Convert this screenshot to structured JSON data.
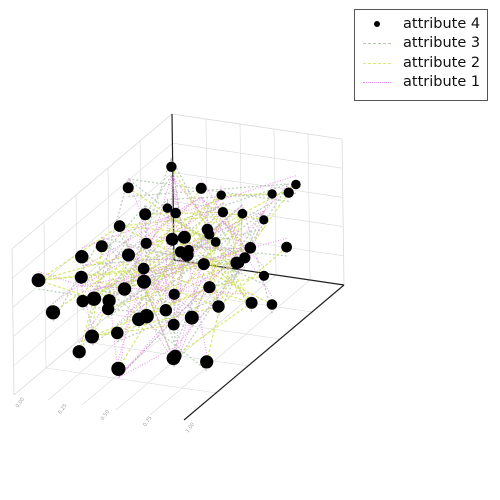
{
  "chart_data": {
    "type": "scatter",
    "projection": "3d",
    "title": "",
    "grid": true,
    "legend": {
      "placement": "top-right"
    },
    "x_ticks": [
      "0.00",
      "0.25",
      "0.50",
      "0.75",
      "1.00"
    ],
    "series": [
      {
        "name": "attribute 4",
        "marker": "filled-circle",
        "color": "#000000",
        "points": [
          [
            0.05,
            0.38,
            0.3
          ],
          [
            0.1,
            0.45,
            0.62
          ],
          [
            0.12,
            0.3,
            0.55
          ],
          [
            0.14,
            0.52,
            0.7
          ],
          [
            0.18,
            0.4,
            0.25
          ],
          [
            0.2,
            0.62,
            0.5
          ],
          [
            0.22,
            0.2,
            0.8
          ],
          [
            0.25,
            0.55,
            0.4
          ],
          [
            0.28,
            0.35,
            0.15
          ],
          [
            0.3,
            0.7,
            0.65
          ],
          [
            0.33,
            0.48,
            0.85
          ],
          [
            0.35,
            0.12,
            0.35
          ],
          [
            0.38,
            0.6,
            0.2
          ],
          [
            0.4,
            0.3,
            0.75
          ],
          [
            0.42,
            0.78,
            0.45
          ],
          [
            0.45,
            0.22,
            0.6
          ],
          [
            0.47,
            0.5,
            0.1
          ],
          [
            0.5,
            0.65,
            0.9
          ],
          [
            0.52,
            0.4,
            0.3
          ],
          [
            0.55,
            0.85,
            0.55
          ],
          [
            0.57,
            0.18,
            0.45
          ],
          [
            0.6,
            0.58,
            0.7
          ],
          [
            0.62,
            0.35,
            0.05
          ],
          [
            0.65,
            0.72,
            0.35
          ],
          [
            0.68,
            0.1,
            0.8
          ],
          [
            0.7,
            0.45,
            0.6
          ],
          [
            0.72,
            0.8,
            0.2
          ],
          [
            0.75,
            0.28,
            0.95
          ],
          [
            0.78,
            0.62,
            0.5
          ],
          [
            0.8,
            0.15,
            0.25
          ],
          [
            0.82,
            0.9,
            0.75
          ],
          [
            0.85,
            0.38,
            0.4
          ],
          [
            0.88,
            0.55,
            0.65
          ],
          [
            0.9,
            0.25,
            0.15
          ],
          [
            0.92,
            0.75,
            0.85
          ],
          [
            0.95,
            0.48,
            0.35
          ],
          [
            0.97,
            0.68,
            0.55
          ],
          [
            0.08,
            0.88,
            0.48
          ],
          [
            0.16,
            0.08,
            0.52
          ],
          [
            0.36,
            0.92,
            0.58
          ],
          [
            0.58,
            0.95,
            0.42
          ],
          [
            0.74,
            0.05,
            0.62
          ],
          [
            0.26,
            0.82,
            0.28
          ],
          [
            0.46,
            0.02,
            0.72
          ],
          [
            0.86,
            0.7,
            0.12
          ],
          [
            0.64,
            0.32,
            0.88
          ],
          [
            0.32,
            0.26,
            0.46
          ],
          [
            0.54,
            0.74,
            0.66
          ],
          [
            0.94,
            0.12,
            0.58
          ],
          [
            0.06,
            0.66,
            0.82
          ],
          [
            0.44,
            0.58,
            0.52
          ],
          [
            0.76,
            0.42,
            0.48
          ],
          [
            0.24,
            0.74,
            0.92
          ],
          [
            0.66,
            0.92,
            0.64
          ],
          [
            0.14,
            0.26,
            0.08
          ],
          [
            0.84,
            0.2,
            0.92
          ],
          [
            0.4,
            0.84,
            0.34
          ],
          [
            0.56,
            0.06,
            0.22
          ],
          [
            0.98,
            0.36,
            0.74
          ],
          [
            0.02,
            0.14,
            0.66
          ]
        ]
      },
      {
        "name": "attribute 3",
        "line": "dashed",
        "color": "#9db89a"
      },
      {
        "name": "attribute 2",
        "line": "dashed",
        "color": "#cfe34a"
      },
      {
        "name": "attribute 1",
        "line": "dotted",
        "color": "#e58be6"
      }
    ]
  }
}
